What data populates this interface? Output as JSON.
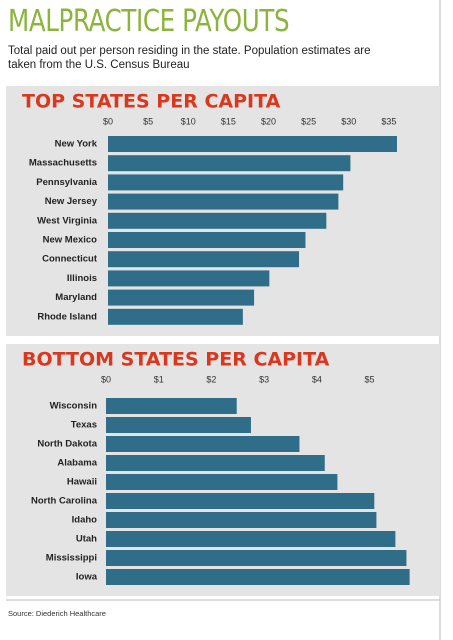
{
  "title": "MALPRACTICE PAYOUTS",
  "subtitle": "Total paid out per person residing in the state. Population estimates are taken from the U.S. Census Bureau",
  "source": "Source: Diederich Healthcare",
  "chart_data": [
    {
      "type": "bar",
      "orientation": "horizontal",
      "title": "TOP STATES PER CAPITA",
      "categories": [
        "New York",
        "Massachusetts",
        "Pennsylvania",
        "New Jersey",
        "West Virginia",
        "New Mexico",
        "Connecticut",
        "Illinois",
        "Maryland",
        "Rhode Island"
      ],
      "values": [
        36.0,
        30.2,
        29.3,
        28.7,
        27.2,
        24.6,
        23.8,
        20.1,
        18.2,
        16.8
      ],
      "color": "#2f6d88",
      "xlim": [
        0,
        37
      ],
      "xticks": [
        {
          "value": 0,
          "label": "$0"
        },
        {
          "value": 5,
          "label": "$5"
        },
        {
          "value": 10,
          "label": "$10"
        },
        {
          "value": 15,
          "label": "$15"
        },
        {
          "value": 20,
          "label": "$20"
        },
        {
          "value": 25,
          "label": "$25"
        },
        {
          "value": 30,
          "label": "$30"
        },
        {
          "value": 35,
          "label": "$35"
        }
      ]
    },
    {
      "type": "bar",
      "orientation": "horizontal",
      "title": "BOTTOM STATES PER CAPITA",
      "categories": [
        "Wisconsin",
        "Texas",
        "North Dakota",
        "Alabama",
        "Hawaii",
        "North Carolina",
        "Idaho",
        "Utah",
        "Mississippi",
        "Iowa"
      ],
      "values": [
        2.48,
        2.75,
        3.67,
        4.15,
        4.39,
        5.09,
        5.13,
        5.49,
        5.7,
        5.76
      ],
      "color": "#2f6d88",
      "xlim": [
        0,
        5.9
      ],
      "xticks": [
        {
          "value": 0,
          "label": "$0"
        },
        {
          "value": 1,
          "label": "$1"
        },
        {
          "value": 2,
          "label": "$2"
        },
        {
          "value": 3,
          "label": "$3"
        },
        {
          "value": 4,
          "label": "$4"
        },
        {
          "value": 5,
          "label": "$5"
        }
      ]
    }
  ]
}
